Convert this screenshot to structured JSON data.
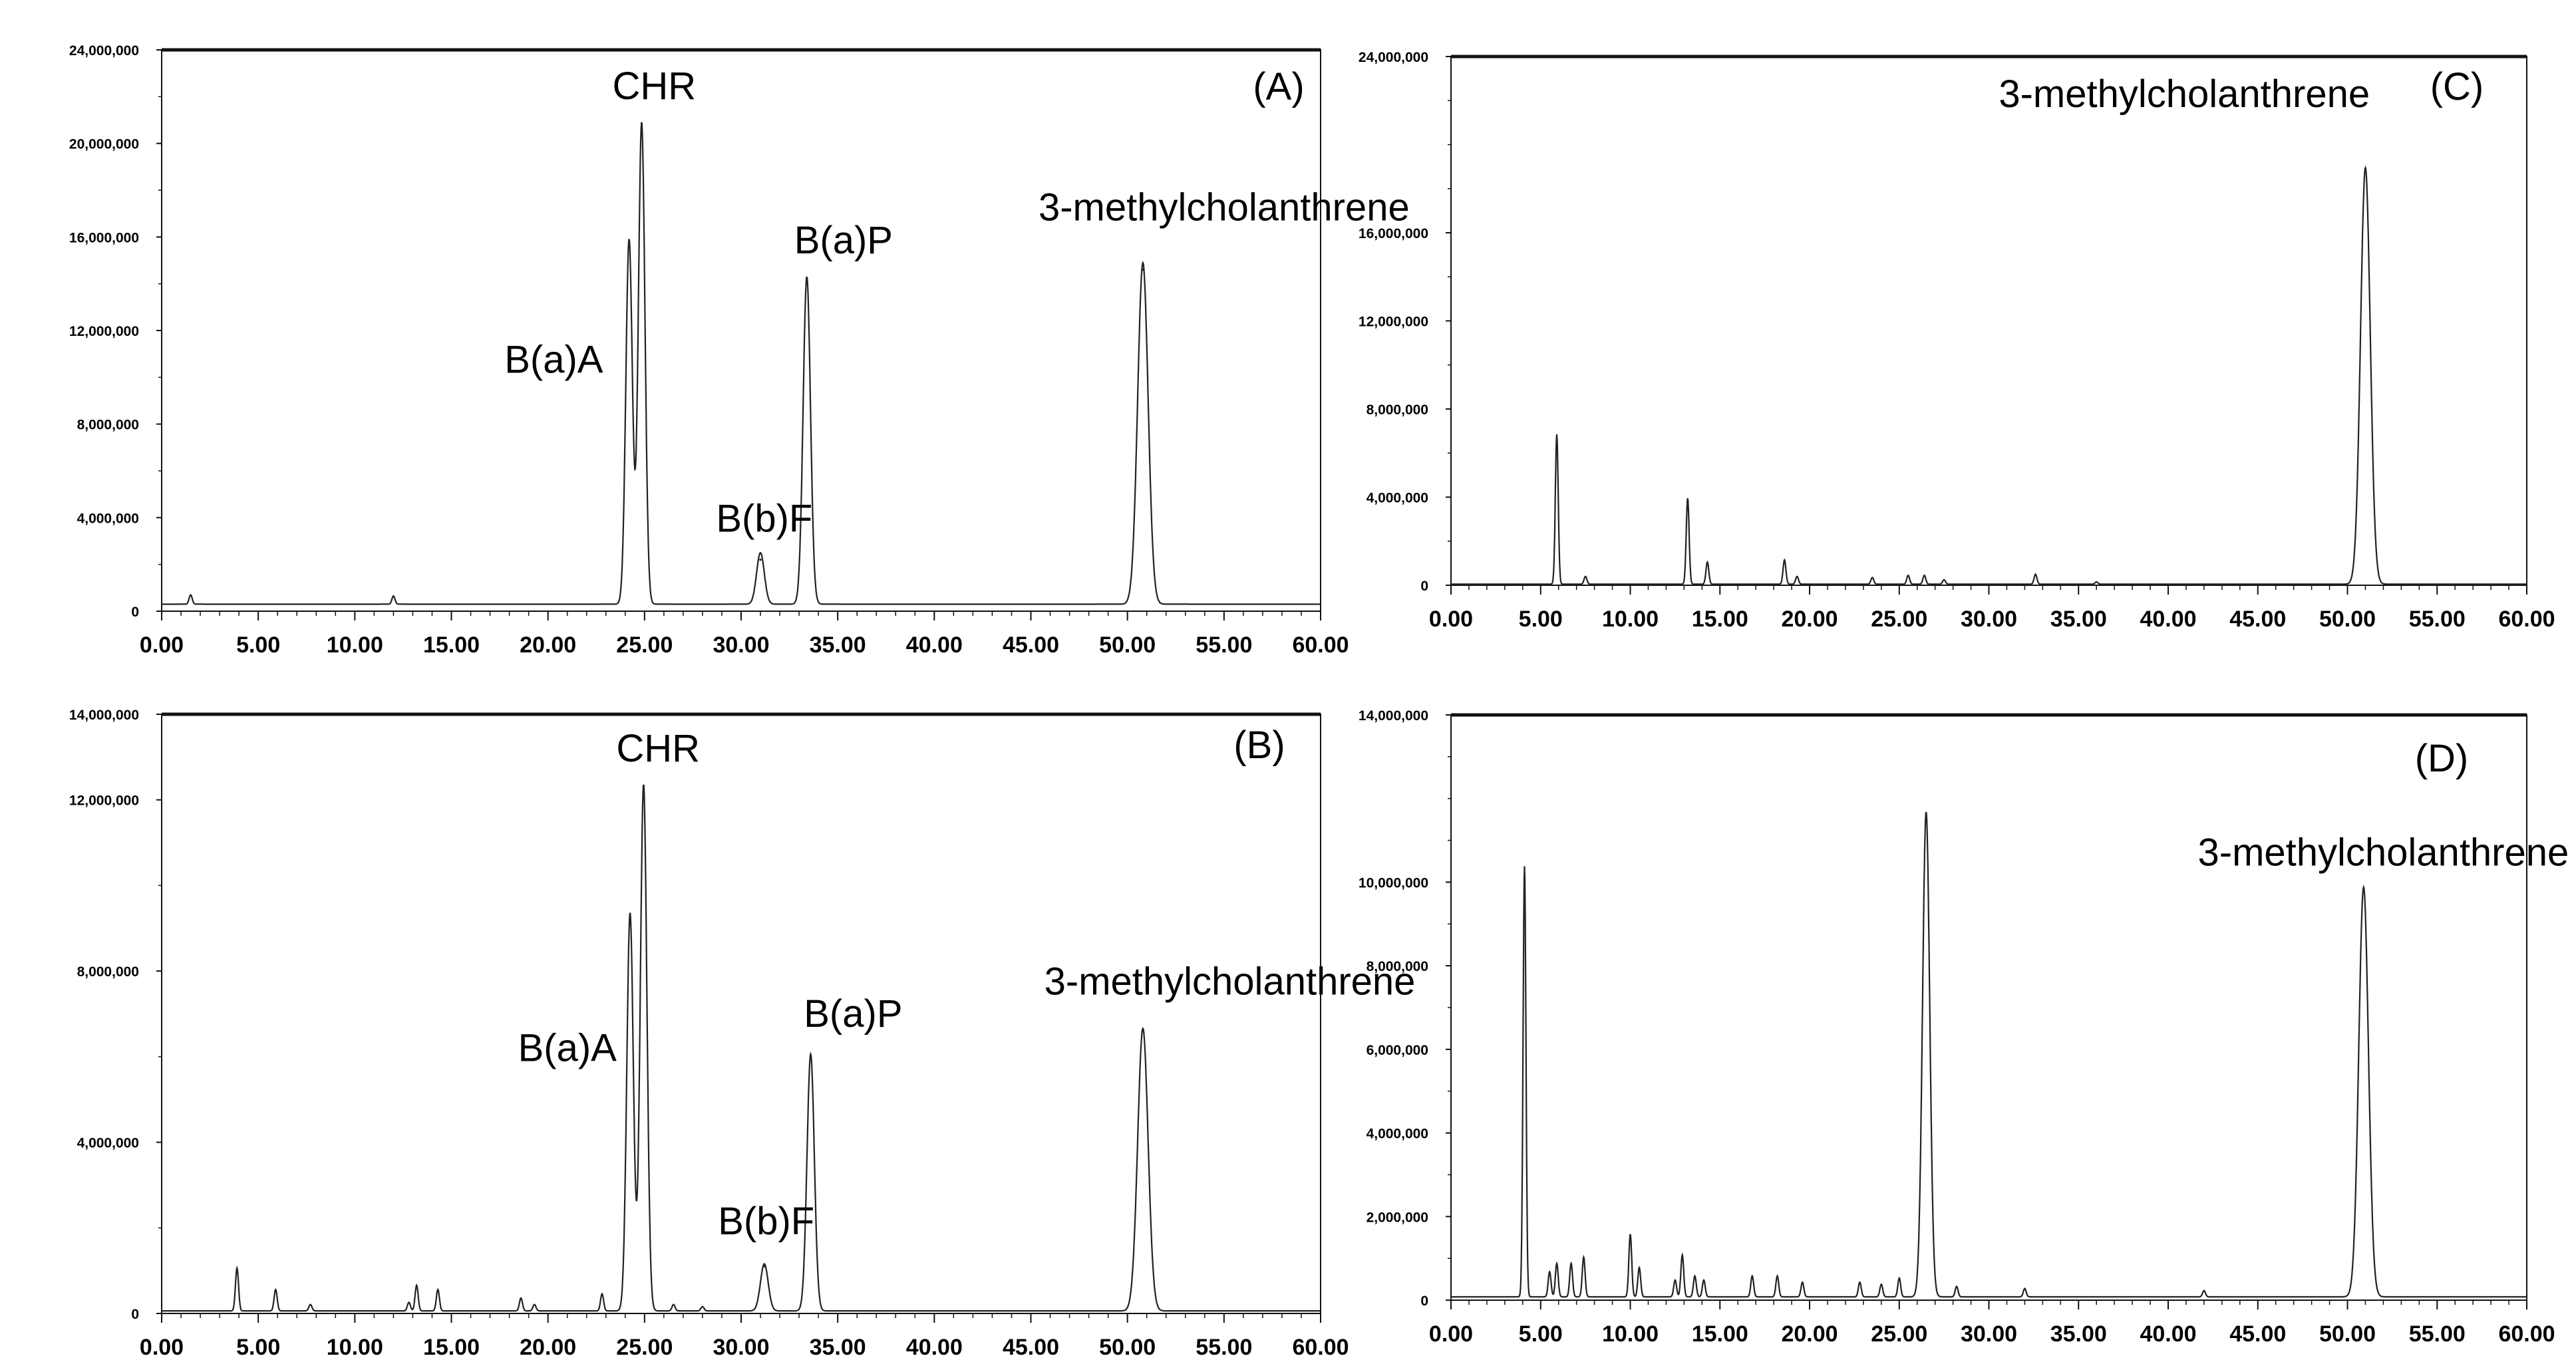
{
  "chart_data": [
    {
      "type": "line",
      "panel_label": "(A)",
      "xlim": [
        0,
        60
      ],
      "ylim": [
        0,
        24000000
      ],
      "x_ticks": [
        "0.00",
        "5.00",
        "10.00",
        "15.00",
        "20.00",
        "25.00",
        "30.00",
        "35.00",
        "40.00",
        "45.00",
        "50.00",
        "55.00",
        "60.00"
      ],
      "y_ticks": [
        "0",
        "4,000,000",
        "8,000,000",
        "12,000,000",
        "16,000,000",
        "20,000,000",
        "24,000,000"
      ],
      "x_tick_values": [
        0,
        5,
        10,
        15,
        20,
        25,
        30,
        35,
        40,
        45,
        50,
        55,
        60
      ],
      "y_tick_values": [
        0,
        4000000,
        8000000,
        12000000,
        16000000,
        20000000,
        24000000
      ],
      "baseline": 300000,
      "peaks": [
        {
          "name": "B(a)A",
          "x": 24.2,
          "y": 15600000,
          "w": 0.17
        },
        {
          "name": "CHR",
          "x": 24.85,
          "y": 20600000,
          "w": 0.17
        },
        {
          "name": "B(b)F",
          "x": 31.0,
          "y": 2200000,
          "w": 0.2
        },
        {
          "name": "B(a)P",
          "x": 33.4,
          "y": 14000000,
          "w": 0.19
        },
        {
          "name": "3-methylcholanthrene",
          "x": 50.8,
          "y": 14600000,
          "w": 0.27
        }
      ],
      "noise": [
        [
          1.5,
          400000
        ],
        [
          12.0,
          350000
        ]
      ],
      "peak_labels": [
        {
          "text": "CHR",
          "x": 25.5,
          "y": 21900000
        },
        {
          "text": "B(a)A",
          "x": 20.3,
          "y": 10200000
        },
        {
          "text": "B(b)F",
          "x": 31.2,
          "y": 3400000
        },
        {
          "text": "B(a)P",
          "x": 35.3,
          "y": 15300000
        },
        {
          "text": "3-methylcholanthrene",
          "x": 55.0,
          "y": 16700000
        }
      ]
    },
    {
      "type": "line",
      "panel_label": "(B)",
      "xlim": [
        0,
        60
      ],
      "ylim": [
        0,
        14000000
      ],
      "x_ticks": [
        "0.00",
        "5.00",
        "10.00",
        "15.00",
        "20.00",
        "25.00",
        "30.00",
        "35.00",
        "40.00",
        "45.00",
        "50.00",
        "55.00",
        "60.00"
      ],
      "y_ticks": [
        "0",
        "4,000,000",
        "8,000,000",
        "12,000,000",
        "14,000,000"
      ],
      "x_tick_values": [
        0,
        5,
        10,
        15,
        20,
        25,
        30,
        35,
        40,
        45,
        50,
        55,
        60
      ],
      "y_tick_values": [
        0,
        4000000,
        8000000,
        12000000,
        14000000
      ],
      "baseline": 60000,
      "peaks": [
        {
          "name": "B(a)A",
          "x": 24.25,
          "y": 9300000,
          "w": 0.17
        },
        {
          "name": "CHR",
          "x": 24.95,
          "y": 12300000,
          "w": 0.17
        },
        {
          "name": "B(b)F",
          "x": 31.2,
          "y": 1100000,
          "w": 0.2
        },
        {
          "name": "B(a)P",
          "x": 33.6,
          "y": 6000000,
          "w": 0.19
        },
        {
          "name": "3-methylcholanthrene",
          "x": 50.8,
          "y": 6600000,
          "w": 0.27
        }
      ],
      "noise": [
        [
          3.9,
          1000000
        ],
        [
          5.9,
          500000
        ],
        [
          7.7,
          150000
        ],
        [
          12.8,
          200000
        ],
        [
          13.2,
          600000
        ],
        [
          14.3,
          500000
        ],
        [
          18.6,
          300000
        ],
        [
          19.3,
          150000
        ],
        [
          22.8,
          400000
        ],
        [
          26.5,
          150000
        ],
        [
          28.0,
          100000
        ]
      ],
      "peak_labels": [
        {
          "text": "CHR",
          "x": 25.7,
          "y": 12900000
        },
        {
          "text": "B(a)A",
          "x": 21.0,
          "y": 5900000
        },
        {
          "text": "B(b)F",
          "x": 31.3,
          "y": 1850000
        },
        {
          "text": "B(a)P",
          "x": 35.8,
          "y": 6700000
        },
        {
          "text": "3-methylcholanthrene",
          "x": 55.3,
          "y": 7450000
        }
      ]
    },
    {
      "type": "line",
      "panel_label": "(C)",
      "peak_label": "3-methylcholanthrene",
      "xlim": [
        0,
        60
      ],
      "ylim": [
        0,
        24000000
      ],
      "x_ticks": [
        "0.00",
        "5.00",
        "10.00",
        "15.00",
        "20.00",
        "25.00",
        "30.00",
        "35.00",
        "40.00",
        "45.00",
        "50.00",
        "55.00",
        "60.00"
      ],
      "y_ticks": [
        "0",
        "4,000,000",
        "8,000,000",
        "12,000,000",
        "16,000,000",
        "24,000,000"
      ],
      "x_tick_values": [
        0,
        5,
        10,
        15,
        20,
        25,
        30,
        35,
        40,
        45,
        50,
        55,
        60
      ],
      "y_tick_values": [
        0,
        4000000,
        8000000,
        12000000,
        16000000,
        24000000
      ],
      "baseline": 50000,
      "peaks": [
        {
          "name": "3-methylcholanthrene",
          "x": 51.0,
          "y": 18900000,
          "w": 0.27
        }
      ],
      "noise": [
        [
          5.9,
          6800000
        ],
        [
          7.5,
          350000
        ],
        [
          13.2,
          3900000
        ],
        [
          14.3,
          1000000
        ],
        [
          18.6,
          1100000
        ],
        [
          19.3,
          350000
        ],
        [
          23.5,
          300000
        ],
        [
          25.5,
          400000
        ],
        [
          26.4,
          400000
        ],
        [
          27.5,
          200000
        ],
        [
          32.6,
          450000
        ],
        [
          36.0,
          100000
        ]
      ],
      "peak_label_pos": {
        "x": 40.9,
        "y": 21700000
      }
    },
    {
      "type": "line",
      "panel_label": "(D)",
      "peak_label": "3-methylcholanthrene",
      "xlim": [
        0,
        60
      ],
      "ylim": [
        0,
        14000000
      ],
      "x_ticks": [
        "0.00",
        "5.00",
        "10.00",
        "15.00",
        "20.00",
        "25.00",
        "30.00",
        "35.00",
        "40.00",
        "45.00",
        "50.00",
        "55.00",
        "60.00"
      ],
      "y_ticks": [
        "0",
        "2,000,000",
        "4,000,000",
        "6,000,000",
        "8,000,000",
        "10,000,000",
        "14,000,000"
      ],
      "x_tick_values": [
        0,
        5,
        10,
        15,
        20,
        25,
        30,
        35,
        40,
        45,
        50,
        55,
        60
      ],
      "y_tick_values": [
        0,
        2000000,
        4000000,
        6000000,
        8000000,
        10000000,
        14000000
      ],
      "baseline": 80000,
      "peaks": [
        {
          "name": "",
          "x": 26.5,
          "y": 11600000,
          "w": 0.2
        },
        {
          "name": "3-methylcholanthrene",
          "x": 50.9,
          "y": 9800000,
          "w": 0.27
        }
      ],
      "noise": [
        [
          4.1,
          10300000
        ],
        [
          5.5,
          600000
        ],
        [
          5.9,
          800000
        ],
        [
          6.7,
          800000
        ],
        [
          7.4,
          950000
        ],
        [
          10.0,
          1500000
        ],
        [
          10.5,
          700000
        ],
        [
          12.5,
          400000
        ],
        [
          12.9,
          1000000
        ],
        [
          13.6,
          500000
        ],
        [
          14.1,
          400000
        ],
        [
          16.8,
          500000
        ],
        [
          18.2,
          500000
        ],
        [
          19.6,
          350000
        ],
        [
          22.8,
          350000
        ],
        [
          24.0,
          300000
        ],
        [
          25.0,
          450000
        ],
        [
          28.2,
          250000
        ],
        [
          32.0,
          200000
        ],
        [
          42.0,
          150000
        ]
      ],
      "peak_label_pos": {
        "x": 52.0,
        "y": 10400000
      }
    }
  ]
}
